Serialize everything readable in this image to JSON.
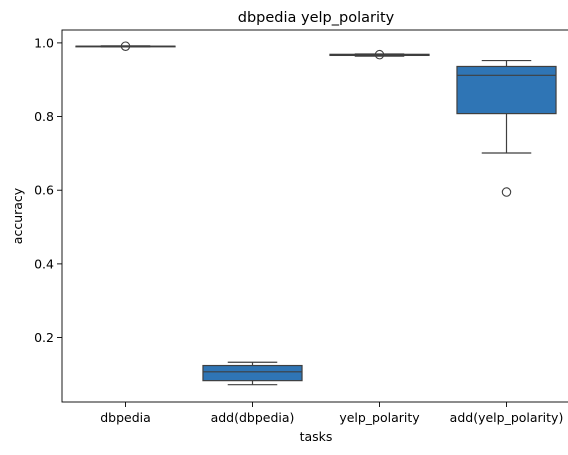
{
  "chart_data": {
    "type": "box",
    "title": "dbpedia yelp_polarity",
    "xlabel": "tasks",
    "ylabel": "accuracy",
    "ylim": [
      0.025,
      1.035
    ],
    "yticks": [
      "0.2",
      "0.4",
      "0.6",
      "0.8",
      "1.0"
    ],
    "grid": false,
    "box_color": "#2f75b5",
    "line_color": "#3f3f3f",
    "categories": [
      "dbpedia",
      "add(dbpedia)",
      "yelp_polarity",
      "add(yelp_polarity)"
    ],
    "boxes": [
      {
        "category": "dbpedia",
        "whislo": 0.989,
        "q1": 0.99,
        "med": 0.991,
        "q3": 0.991,
        "whishi": 0.992,
        "fliers": [
          0.991
        ]
      },
      {
        "category": "add(dbpedia)",
        "whislo": 0.072,
        "q1": 0.083,
        "med": 0.107,
        "q3": 0.124,
        "whishi": 0.133,
        "fliers": []
      },
      {
        "category": "yelp_polarity",
        "whislo": 0.964,
        "q1": 0.966,
        "med": 0.968,
        "q3": 0.969,
        "whishi": 0.97,
        "fliers": [
          0.968
        ]
      },
      {
        "category": "add(yelp_polarity)",
        "whislo": 0.701,
        "q1": 0.808,
        "med": 0.912,
        "q3": 0.936,
        "whishi": 0.952,
        "fliers": [
          0.595
        ]
      }
    ]
  }
}
